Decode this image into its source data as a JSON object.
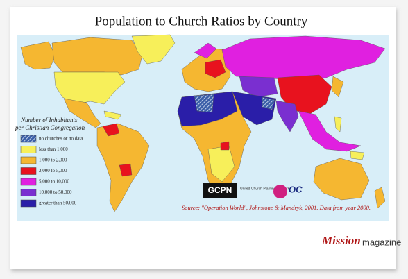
{
  "header": {
    "title": "Population to Church Ratios by Country"
  },
  "legend": {
    "title_lines": [
      "Number of Inhabitants",
      "per Christian Congregation"
    ],
    "items": [
      {
        "label": "no churches or no data",
        "color": "#3b5fa8",
        "hatched": true
      },
      {
        "label": "less than 1,000",
        "color": "#f7ef5a"
      },
      {
        "label": "1,000 to 2,000",
        "color": "#f5b731"
      },
      {
        "label": "2,000 to 5,000",
        "color": "#e8121e"
      },
      {
        "label": "5,000 to 10,000",
        "color": "#e020e0"
      },
      {
        "label": "10,000 to 50,000",
        "color": "#7a2fd0"
      },
      {
        "label": "greater than 50,000",
        "color": "#2a1ea8"
      }
    ]
  },
  "source": "Source: \"Operation World\", Johnstone & Mandryk, 2001. Data from year 2000.",
  "logos": {
    "gcpn": "GCPN",
    "gcpn_text": "United Church Planting Network",
    "oc": "OC"
  },
  "watermark": {
    "part1": "Mission",
    "part2": "magazine"
  }
}
